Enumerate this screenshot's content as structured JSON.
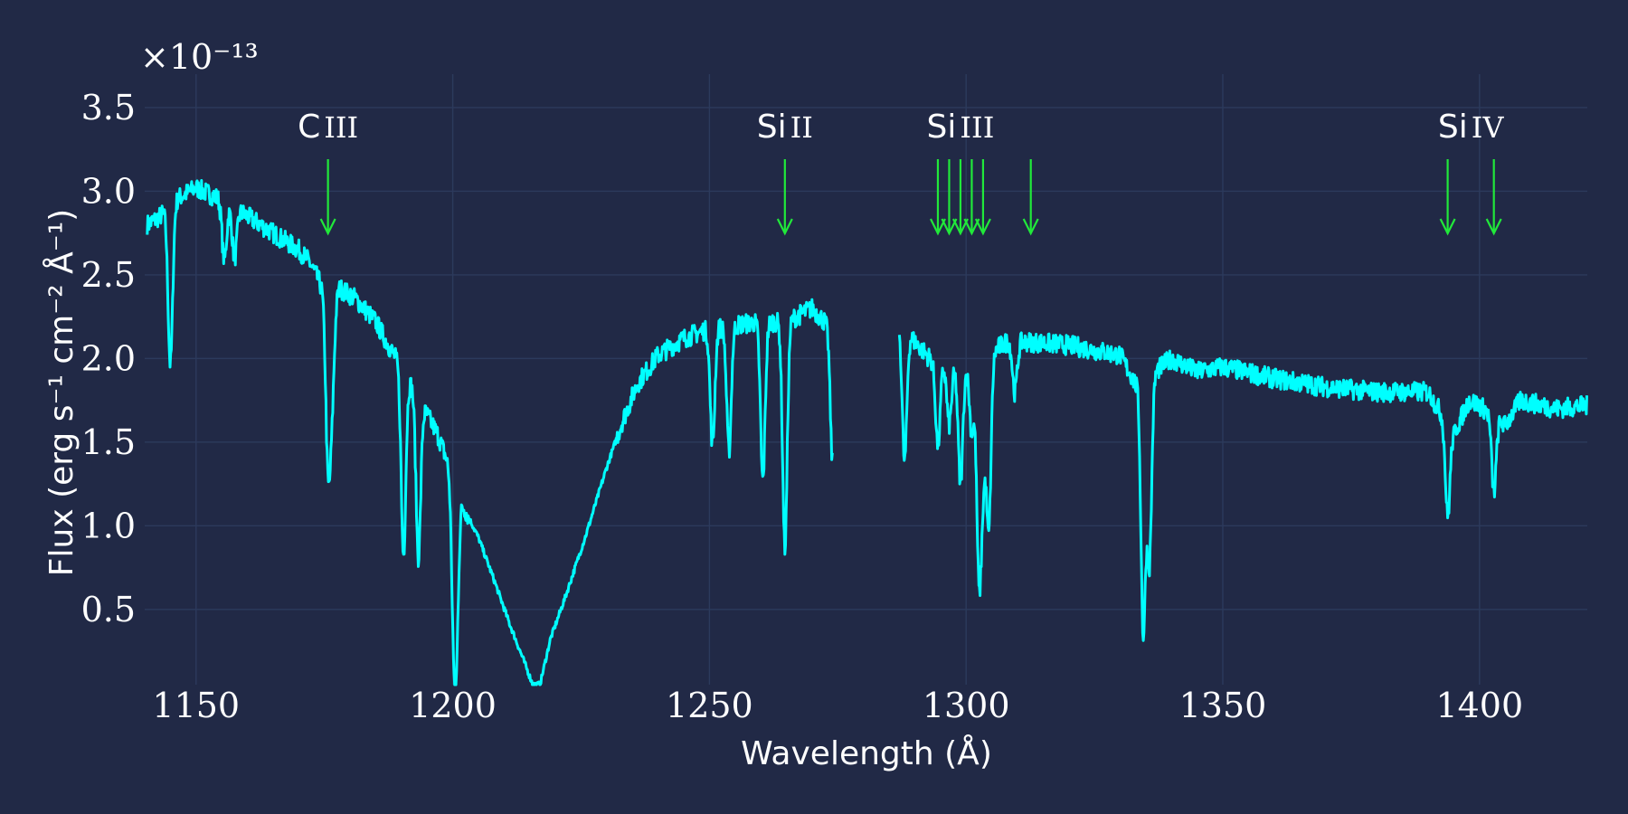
{
  "chart_data": {
    "type": "line",
    "xlabel": "Wavelength (Å)",
    "ylabel": "Flux (erg s⁻¹ cm⁻² Å⁻¹)",
    "y_multiplier": "×10⁻¹³",
    "xlim": [
      1140,
      1421
    ],
    "ylim": [
      0.05,
      3.7
    ],
    "x_ticks": [
      1150,
      1200,
      1250,
      1300,
      1350,
      1400
    ],
    "y_ticks": [
      0.5,
      1.0,
      1.5,
      2.0,
      2.5,
      3.0,
      3.5
    ],
    "y_tick_labels": [
      "0.5",
      "1.0",
      "1.5",
      "2.0",
      "2.5",
      "3.0",
      "3.5"
    ],
    "grid": true,
    "colors": {
      "background": "#212946",
      "spectrum": "#00ffff",
      "markers": "#21e83a",
      "text": "#ffffff",
      "grid": "#2c3a5c"
    },
    "series": [
      {
        "continuum": [
          [
            1140.5,
            2.8
          ],
          [
            1143,
            2.85
          ],
          [
            1146,
            2.95
          ],
          [
            1150,
            3.02
          ],
          [
            1155,
            2.95
          ],
          [
            1160,
            2.85
          ],
          [
            1165,
            2.75
          ],
          [
            1170,
            2.65
          ],
          [
            1172,
            2.58
          ],
          [
            1174,
            2.46
          ],
          [
            1176,
            2.32
          ],
          [
            1178,
            2.42
          ],
          [
            1181,
            2.36
          ],
          [
            1185,
            2.22
          ],
          [
            1188,
            2.05
          ],
          [
            1191,
            1.9
          ],
          [
            1194,
            1.72
          ],
          [
            1197,
            1.55
          ],
          [
            1200,
            1.3
          ],
          [
            1202,
            1.12
          ],
          [
            1205,
            0.93
          ],
          [
            1208,
            0.68
          ],
          [
            1211,
            0.42
          ],
          [
            1214,
            0.18
          ],
          [
            1215.6,
            0.05
          ],
          [
            1217,
            0.05
          ],
          [
            1219,
            0.32
          ],
          [
            1222,
            0.58
          ],
          [
            1226,
            0.95
          ],
          [
            1230,
            1.35
          ],
          [
            1233,
            1.62
          ],
          [
            1236,
            1.85
          ],
          [
            1240,
            2.02
          ],
          [
            1245,
            2.12
          ],
          [
            1250,
            2.18
          ],
          [
            1255,
            2.2
          ],
          [
            1260,
            2.22
          ],
          [
            1265,
            2.22
          ],
          [
            1270,
            2.3
          ],
          [
            1274,
            2.17
          ]
        ],
        "continuum_2": [
          [
            1287,
            2.22
          ],
          [
            1290,
            2.1
          ],
          [
            1293,
            2.0
          ],
          [
            1297,
            1.95
          ],
          [
            1300,
            1.95
          ],
          [
            1304,
            2.02
          ],
          [
            1308,
            2.1
          ],
          [
            1312,
            2.1
          ],
          [
            1320,
            2.08
          ],
          [
            1330,
            2.02
          ],
          [
            1333,
            1.85
          ],
          [
            1336,
            1.9
          ],
          [
            1340,
            2.0
          ],
          [
            1345,
            1.92
          ],
          [
            1350,
            1.95
          ],
          [
            1360,
            1.88
          ],
          [
            1370,
            1.83
          ],
          [
            1380,
            1.8
          ],
          [
            1390,
            1.8
          ],
          [
            1395,
            1.55
          ],
          [
            1398,
            1.75
          ],
          [
            1400,
            1.72
          ],
          [
            1405,
            1.6
          ],
          [
            1408,
            1.75
          ],
          [
            1415,
            1.7
          ],
          [
            1421,
            1.72
          ]
        ],
        "absorption_lines": [
          [
            1145,
            0.95
          ],
          [
            1155.5,
            0.35
          ],
          [
            1157.5,
            0.3
          ],
          [
            1175.7,
            0.95
          ],
          [
            1176.5,
            0.55
          ],
          [
            1190.4,
            1.1
          ],
          [
            1193.3,
            0.95
          ],
          [
            1200.2,
            0.75
          ],
          [
            1200.7,
            0.75
          ],
          [
            1260.4,
            0.95
          ],
          [
            1264.7,
            1.35
          ],
          [
            1253.8,
            0.75
          ],
          [
            1250.6,
            0.7
          ],
          [
            1274,
            0.8
          ],
          [
            1288,
            0.8
          ],
          [
            1294.5,
            0.5
          ],
          [
            1296.7,
            0.35
          ],
          [
            1298.9,
            0.7
          ],
          [
            1301.1,
            0.4
          ],
          [
            1302.5,
            1.25
          ],
          [
            1303.3,
            0.6
          ],
          [
            1304.4,
            1.05
          ],
          [
            1309.5,
            0.3
          ],
          [
            1334.5,
            1.5
          ],
          [
            1335.7,
            1.1
          ],
          [
            1393.8,
            0.55
          ],
          [
            1402.8,
            0.45
          ]
        ],
        "noise": 0.06
      }
    ],
    "line_markers": [
      {
        "ion": "C",
        "stage": "III",
        "wavelengths": [
          1175.7
        ]
      },
      {
        "ion": "Si",
        "stage": "II",
        "wavelengths": [
          1264.7
        ]
      },
      {
        "ion": "Si",
        "stage": "III",
        "wavelengths": [
          1294.5,
          1296.7,
          1298.9,
          1301.1,
          1303.3,
          1312.6
        ]
      },
      {
        "ion": "Si",
        "stage": "IV",
        "wavelengths": [
          1393.8,
          1402.8
        ]
      }
    ]
  }
}
